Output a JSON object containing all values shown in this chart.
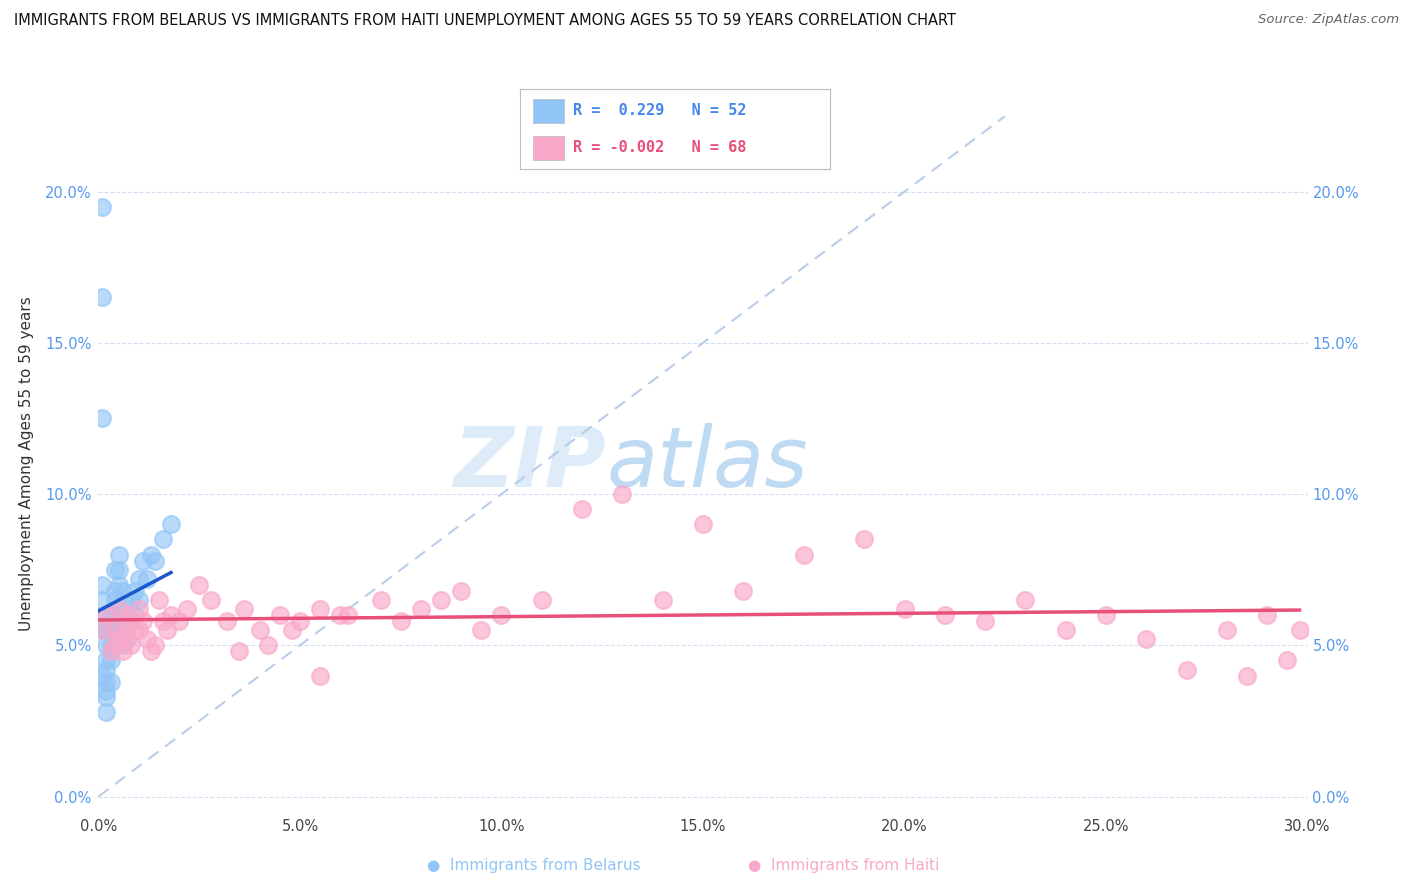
{
  "title": "IMMIGRANTS FROM BELARUS VS IMMIGRANTS FROM HAITI UNEMPLOYMENT AMONG AGES 55 TO 59 YEARS CORRELATION CHART",
  "source": "Source: ZipAtlas.com",
  "xlabel_belarus": "Immigrants from Belarus",
  "xlabel_haiti": "Immigrants from Haiti",
  "ylabel": "Unemployment Among Ages 55 to 59 years",
  "xlim": [
    0.0,
    0.3
  ],
  "ylim": [
    -0.005,
    0.225
  ],
  "xticks": [
    0.0,
    0.05,
    0.1,
    0.15,
    0.2,
    0.25,
    0.3
  ],
  "xtick_labels": [
    "0.0%",
    "5.0%",
    "10.0%",
    "15.0%",
    "20.0%",
    "25.0%",
    "30.0%"
  ],
  "yticks": [
    0.0,
    0.05,
    0.1,
    0.15,
    0.2
  ],
  "ytick_labels": [
    "0.0%",
    "5.0%",
    "10.0%",
    "15.0%",
    "20.0%"
  ],
  "belarus_color": "#92c5f7",
  "haiti_color": "#f9a8c9",
  "belarus_trend_color": "#1a56cc",
  "haiti_trend_color": "#e8507a",
  "diag_color": "#b0c8e8",
  "legend_r_belarus": "0.229",
  "legend_n_belarus": "52",
  "legend_r_haiti": "-0.002",
  "legend_n_haiti": "68",
  "watermark_zip": "ZIP",
  "watermark_atlas": "atlas",
  "belarus_x": [
    0.001,
    0.001,
    0.001,
    0.001,
    0.001,
    0.001,
    0.001,
    0.002,
    0.002,
    0.002,
    0.002,
    0.002,
    0.002,
    0.002,
    0.002,
    0.002,
    0.003,
    0.003,
    0.003,
    0.003,
    0.003,
    0.003,
    0.004,
    0.004,
    0.004,
    0.004,
    0.004,
    0.004,
    0.005,
    0.005,
    0.005,
    0.005,
    0.005,
    0.006,
    0.006,
    0.006,
    0.006,
    0.007,
    0.007,
    0.007,
    0.008,
    0.008,
    0.009,
    0.009,
    0.01,
    0.01,
    0.011,
    0.012,
    0.013,
    0.014,
    0.016,
    0.018
  ],
  "belarus_y": [
    0.195,
    0.165,
    0.125,
    0.07,
    0.065,
    0.055,
    0.04,
    0.06,
    0.055,
    0.05,
    0.045,
    0.042,
    0.038,
    0.035,
    0.033,
    0.028,
    0.06,
    0.055,
    0.05,
    0.048,
    0.045,
    0.038,
    0.075,
    0.068,
    0.065,
    0.06,
    0.055,
    0.05,
    0.08,
    0.075,
    0.07,
    0.06,
    0.055,
    0.068,
    0.06,
    0.055,
    0.05,
    0.062,
    0.058,
    0.052,
    0.065,
    0.058,
    0.068,
    0.06,
    0.072,
    0.065,
    0.078,
    0.072,
    0.08,
    0.078,
    0.085,
    0.09
  ],
  "haiti_x": [
    0.001,
    0.002,
    0.003,
    0.004,
    0.004,
    0.005,
    0.005,
    0.006,
    0.006,
    0.007,
    0.007,
    0.008,
    0.008,
    0.009,
    0.01,
    0.01,
    0.011,
    0.012,
    0.013,
    0.014,
    0.015,
    0.016,
    0.017,
    0.018,
    0.02,
    0.022,
    0.025,
    0.028,
    0.032,
    0.036,
    0.04,
    0.045,
    0.05,
    0.055,
    0.06,
    0.07,
    0.08,
    0.09,
    0.1,
    0.11,
    0.12,
    0.13,
    0.14,
    0.15,
    0.16,
    0.175,
    0.19,
    0.2,
    0.21,
    0.22,
    0.23,
    0.24,
    0.25,
    0.26,
    0.27,
    0.28,
    0.285,
    0.29,
    0.295,
    0.298,
    0.035,
    0.042,
    0.048,
    0.055,
    0.062,
    0.075,
    0.085,
    0.095
  ],
  "haiti_y": [
    0.055,
    0.06,
    0.048,
    0.055,
    0.05,
    0.062,
    0.052,
    0.055,
    0.048,
    0.06,
    0.052,
    0.058,
    0.05,
    0.055,
    0.062,
    0.055,
    0.058,
    0.052,
    0.048,
    0.05,
    0.065,
    0.058,
    0.055,
    0.06,
    0.058,
    0.062,
    0.07,
    0.065,
    0.058,
    0.062,
    0.055,
    0.06,
    0.058,
    0.062,
    0.06,
    0.065,
    0.062,
    0.068,
    0.06,
    0.065,
    0.095,
    0.1,
    0.065,
    0.09,
    0.068,
    0.08,
    0.085,
    0.062,
    0.06,
    0.058,
    0.065,
    0.055,
    0.06,
    0.052,
    0.042,
    0.055,
    0.04,
    0.06,
    0.045,
    0.055,
    0.048,
    0.05,
    0.055,
    0.04,
    0.06,
    0.058,
    0.065,
    0.055
  ]
}
